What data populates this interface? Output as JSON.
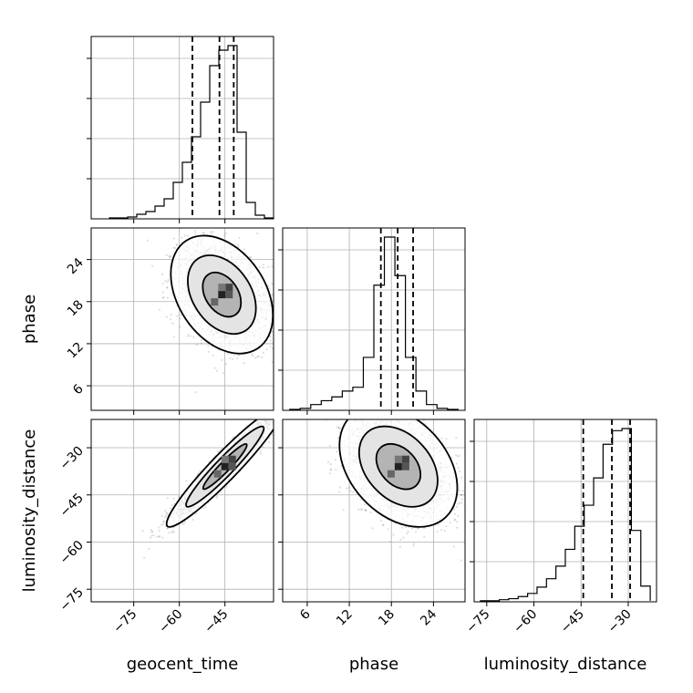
{
  "chart_data": {
    "type": "corner",
    "parameters": [
      "geocent_time",
      "phase",
      "luminosity_distance"
    ],
    "labels": {
      "geocent_time": "geocent_time",
      "phase": "phase",
      "luminosity_distance": "luminosity_distance"
    },
    "ranges": {
      "geocent_time": [
        -89,
        -29
      ],
      "phase": [
        2.5,
        28.5
      ],
      "luminosity_distance": [
        -79,
        -21
      ]
    },
    "ticks": {
      "geocent_time": [
        -75,
        -60,
        -45
      ],
      "phase": [
        6,
        12,
        18,
        24
      ],
      "luminosity_distance": [
        -75,
        -60,
        -45,
        -30
      ]
    },
    "quantiles": {
      "geocent_time": [
        -55.7,
        -46.8,
        -42.1
      ],
      "phase": [
        16.5,
        18.9,
        21.1
      ],
      "luminosity_distance": [
        -44.3,
        -35.2,
        -29.4
      ]
    },
    "histograms": {
      "geocent_time": {
        "edges": [
          -83,
          -80,
          -77,
          -74,
          -71,
          -68,
          -65,
          -62,
          -59,
          -56,
          -53,
          -50,
          -47,
          -44,
          -41,
          -38,
          -35,
          -32,
          -29
        ],
        "counts": [
          1,
          1,
          2,
          5,
          8,
          14,
          22,
          40,
          62,
          90,
          128,
          168,
          185,
          190,
          95,
          18,
          4,
          1
        ]
      },
      "phase": {
        "edges": [
          3.5,
          5,
          6.5,
          8,
          9.5,
          11,
          12.5,
          14,
          15.5,
          17,
          18.5,
          20,
          21.5,
          23,
          24.5,
          26,
          27.5
        ],
        "counts": [
          1,
          2,
          6,
          10,
          14,
          20,
          24,
          55,
          130,
          180,
          140,
          55,
          20,
          6,
          2,
          1
        ]
      },
      "luminosity_distance": {
        "edges": [
          -77,
          -74,
          -71,
          -68,
          -65,
          -62,
          -59,
          -56,
          -53,
          -50,
          -47,
          -44,
          -41,
          -38,
          -35,
          -32,
          -29,
          -26,
          -23
        ],
        "counts": [
          1,
          1,
          2,
          3,
          5,
          8,
          14,
          22,
          34,
          50,
          72,
          92,
          118,
          150,
          163,
          165,
          68,
          15,
          1
        ]
      }
    },
    "panels": [
      {
        "x": "geocent_time",
        "y": "phase",
        "mean": [
          -46,
          19
        ],
        "sd": [
          7,
          3.5
        ],
        "corr": -0.35
      },
      {
        "x": "geocent_time",
        "y": "luminosity_distance",
        "mean": [
          -45,
          -36
        ],
        "sd": [
          8,
          8
        ],
        "corr": 0.95
      },
      {
        "x": "phase",
        "y": "luminosity_distance",
        "mean": [
          19,
          -36
        ],
        "sd": [
          3.5,
          8
        ],
        "corr": -0.35
      }
    ]
  }
}
